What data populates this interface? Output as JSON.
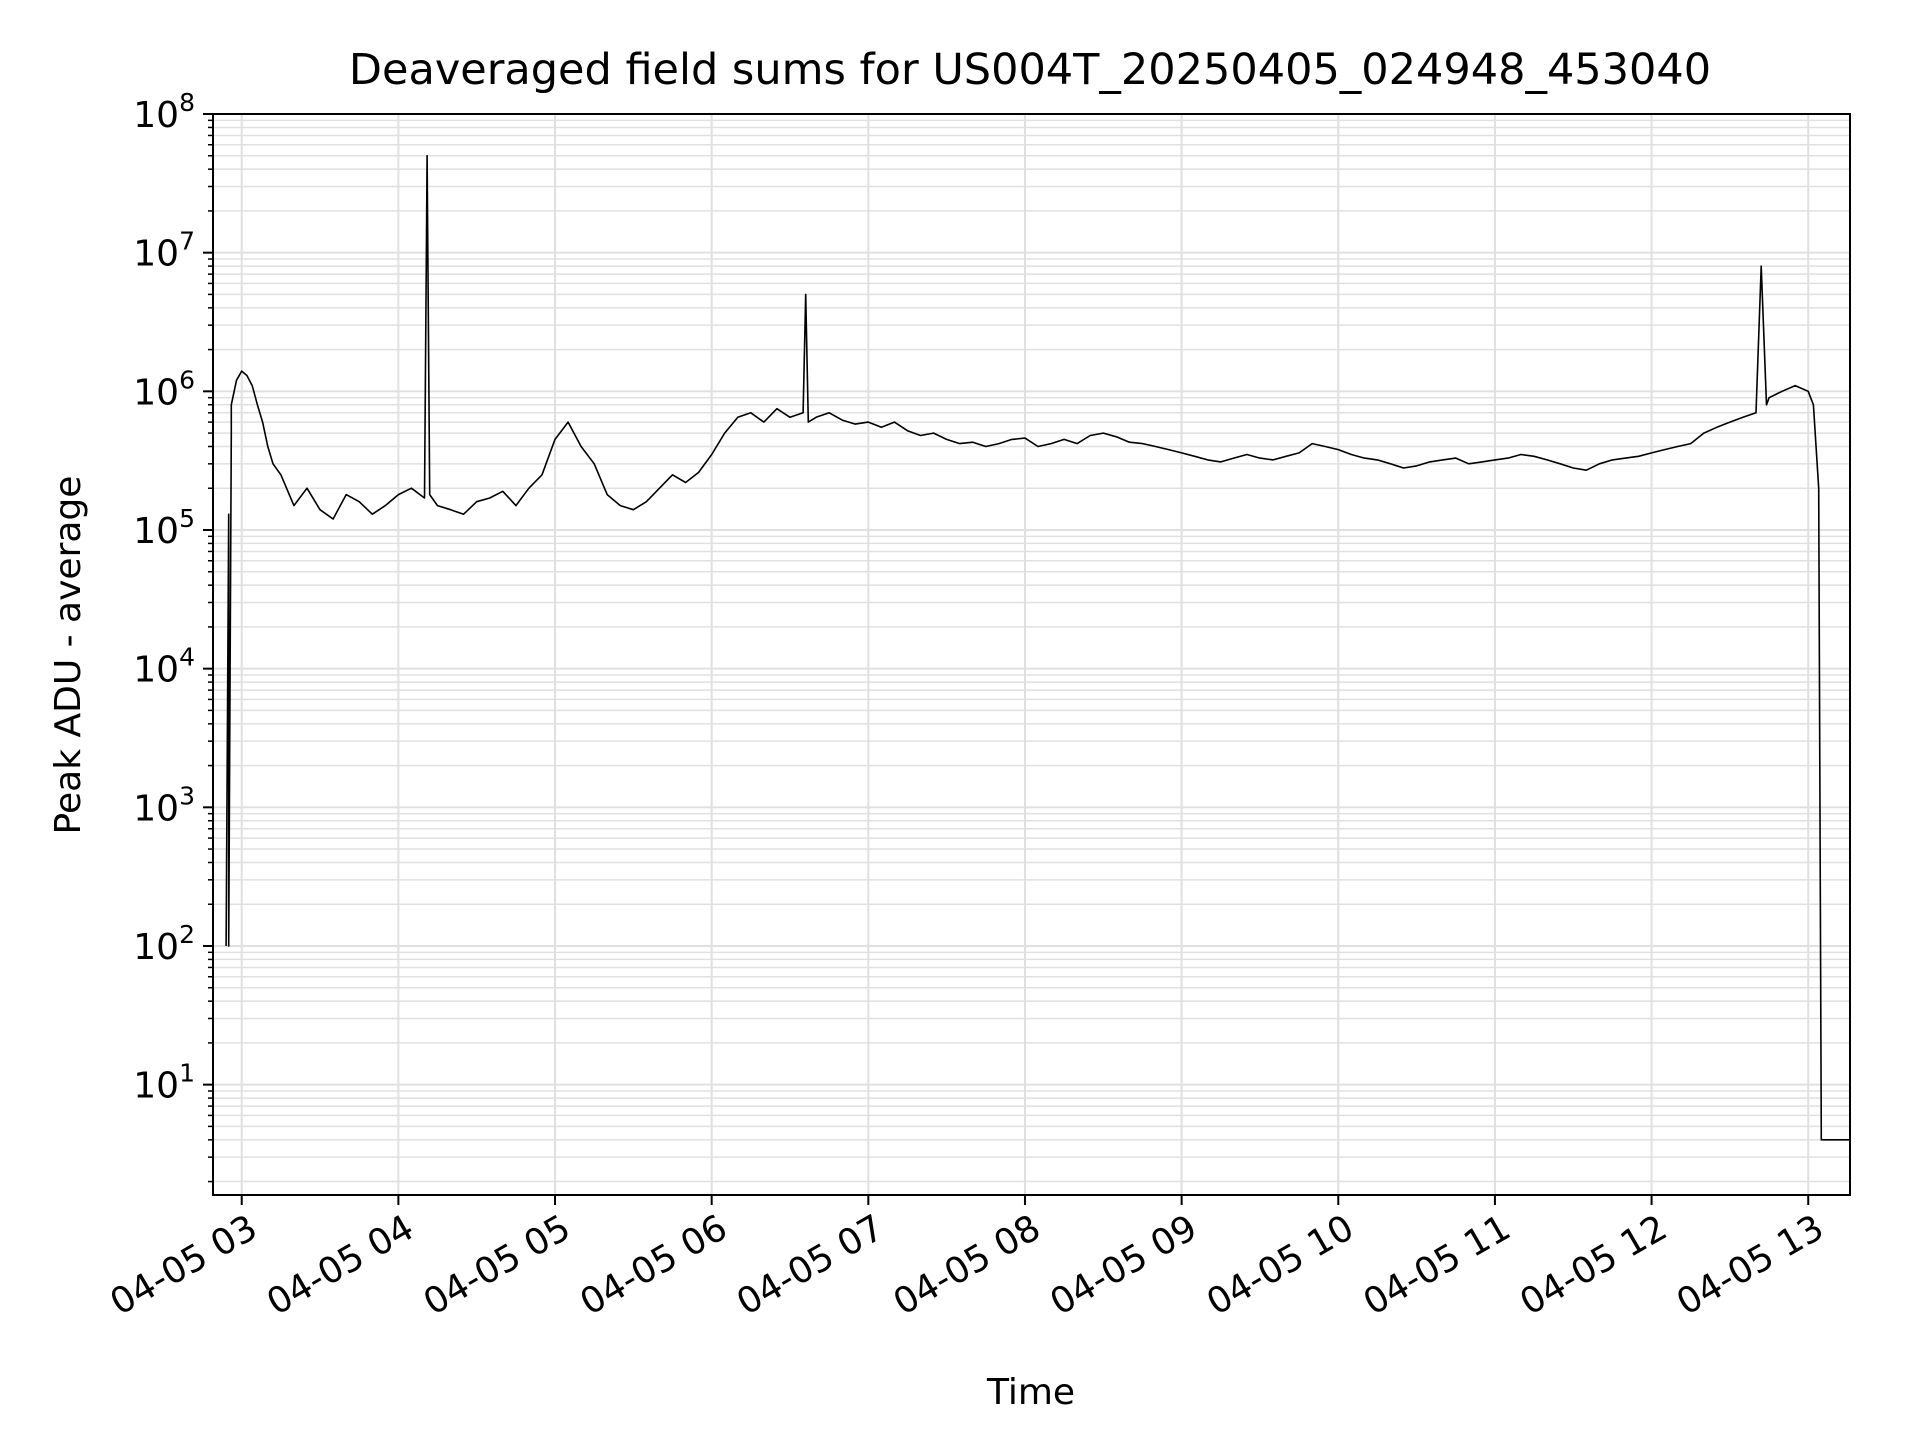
{
  "chart_data": {
    "type": "line",
    "title": "Deaveraged field sums for US004T_20250405_024948_453040",
    "xlabel": "Time",
    "ylabel": "Peak ADU - average",
    "yscale": "log",
    "ylim": [
      1.6,
      100000000
    ],
    "y_ticks": [
      {
        "value": 10,
        "base": "10",
        "exp": "1"
      },
      {
        "value": 100,
        "base": "10",
        "exp": "2"
      },
      {
        "value": 1000,
        "base": "10",
        "exp": "3"
      },
      {
        "value": 10000,
        "base": "10",
        "exp": "4"
      },
      {
        "value": 100000,
        "base": "10",
        "exp": "5"
      },
      {
        "value": 1000000,
        "base": "10",
        "exp": "6"
      },
      {
        "value": 10000000,
        "base": "10",
        "exp": "7"
      },
      {
        "value": 100000000,
        "base": "10",
        "exp": "8"
      }
    ],
    "xlim": [
      "2025-04-05T02:49",
      "2025-04-05T13:16"
    ],
    "x_ticks": [
      {
        "value": "2025-04-05T03:00",
        "label": "04-05 03"
      },
      {
        "value": "2025-04-05T04:00",
        "label": "04-05 04"
      },
      {
        "value": "2025-04-05T05:00",
        "label": "04-05 05"
      },
      {
        "value": "2025-04-05T06:00",
        "label": "04-05 06"
      },
      {
        "value": "2025-04-05T07:00",
        "label": "04-05 07"
      },
      {
        "value": "2025-04-05T08:00",
        "label": "04-05 08"
      },
      {
        "value": "2025-04-05T09:00",
        "label": "04-05 09"
      },
      {
        "value": "2025-04-05T10:00",
        "label": "04-05 10"
      },
      {
        "value": "2025-04-05T11:00",
        "label": "04-05 11"
      },
      {
        "value": "2025-04-05T12:00",
        "label": "04-05 12"
      },
      {
        "value": "2025-04-05T13:00",
        "label": "04-05 13"
      }
    ],
    "grid": true,
    "line_color": "#000000",
    "grid_color": "#e0e0e0",
    "series": [
      {
        "x": [
          "2025-04-05T02:54",
          "2025-04-05T02:55",
          "2025-04-05T02:55",
          "2025-04-05T02:56",
          "2025-04-05T02:56",
          "2025-04-05T02:58",
          "2025-04-05T03:00",
          "2025-04-05T03:02",
          "2025-04-05T03:04",
          "2025-04-05T03:06",
          "2025-04-05T03:08",
          "2025-04-05T03:10",
          "2025-04-05T03:12",
          "2025-04-05T03:15",
          "2025-04-05T03:20",
          "2025-04-05T03:25",
          "2025-04-05T03:30",
          "2025-04-05T03:35",
          "2025-04-05T03:40",
          "2025-04-05T03:45",
          "2025-04-05T03:50",
          "2025-04-05T03:55",
          "2025-04-05T04:00",
          "2025-04-05T04:05",
          "2025-04-05T04:10",
          "2025-04-05T04:11",
          "2025-04-05T04:12",
          "2025-04-05T04:15",
          "2025-04-05T04:20",
          "2025-04-05T04:25",
          "2025-04-05T04:30",
          "2025-04-05T04:35",
          "2025-04-05T04:40",
          "2025-04-05T04:45",
          "2025-04-05T04:50",
          "2025-04-05T04:55",
          "2025-04-05T05:00",
          "2025-04-05T05:05",
          "2025-04-05T05:10",
          "2025-04-05T05:15",
          "2025-04-05T05:20",
          "2025-04-05T05:25",
          "2025-04-05T05:30",
          "2025-04-05T05:35",
          "2025-04-05T05:40",
          "2025-04-05T05:45",
          "2025-04-05T05:50",
          "2025-04-05T05:55",
          "2025-04-05T06:00",
          "2025-04-05T06:05",
          "2025-04-05T06:10",
          "2025-04-05T06:15",
          "2025-04-05T06:20",
          "2025-04-05T06:25",
          "2025-04-05T06:30",
          "2025-04-05T06:35",
          "2025-04-05T06:36",
          "2025-04-05T06:37",
          "2025-04-05T06:40",
          "2025-04-05T06:45",
          "2025-04-05T06:50",
          "2025-04-05T06:55",
          "2025-04-05T07:00",
          "2025-04-05T07:05",
          "2025-04-05T07:10",
          "2025-04-05T07:15",
          "2025-04-05T07:20",
          "2025-04-05T07:25",
          "2025-04-05T07:30",
          "2025-04-05T07:35",
          "2025-04-05T07:40",
          "2025-04-05T07:45",
          "2025-04-05T07:50",
          "2025-04-05T07:55",
          "2025-04-05T08:00",
          "2025-04-05T08:05",
          "2025-04-05T08:10",
          "2025-04-05T08:15",
          "2025-04-05T08:20",
          "2025-04-05T08:25",
          "2025-04-05T08:30",
          "2025-04-05T08:35",
          "2025-04-05T08:40",
          "2025-04-05T08:45",
          "2025-04-05T08:50",
          "2025-04-05T08:55",
          "2025-04-05T09:00",
          "2025-04-05T09:05",
          "2025-04-05T09:10",
          "2025-04-05T09:15",
          "2025-04-05T09:20",
          "2025-04-05T09:25",
          "2025-04-05T09:30",
          "2025-04-05T09:35",
          "2025-04-05T09:40",
          "2025-04-05T09:45",
          "2025-04-05T09:50",
          "2025-04-05T09:55",
          "2025-04-05T10:00",
          "2025-04-05T10:05",
          "2025-04-05T10:10",
          "2025-04-05T10:15",
          "2025-04-05T10:20",
          "2025-04-05T10:25",
          "2025-04-05T10:30",
          "2025-04-05T10:35",
          "2025-04-05T10:40",
          "2025-04-05T10:45",
          "2025-04-05T10:50",
          "2025-04-05T10:55",
          "2025-04-05T11:00",
          "2025-04-05T11:05",
          "2025-04-05T11:10",
          "2025-04-05T11:15",
          "2025-04-05T11:20",
          "2025-04-05T11:25",
          "2025-04-05T11:30",
          "2025-04-05T11:35",
          "2025-04-05T11:40",
          "2025-04-05T11:45",
          "2025-04-05T11:50",
          "2025-04-05T11:55",
          "2025-04-05T12:00",
          "2025-04-05T12:05",
          "2025-04-05T12:10",
          "2025-04-05T12:15",
          "2025-04-05T12:20",
          "2025-04-05T12:25",
          "2025-04-05T12:30",
          "2025-04-05T12:35",
          "2025-04-05T12:40",
          "2025-04-05T12:42",
          "2025-04-05T12:44",
          "2025-04-05T12:45",
          "2025-04-05T12:50",
          "2025-04-05T12:55",
          "2025-04-05T13:00",
          "2025-04-05T13:02",
          "2025-04-05T13:04",
          "2025-04-05T13:05",
          "2025-04-05T13:06",
          "2025-04-05T13:08",
          "2025-04-05T13:10",
          "2025-04-05T13:12",
          "2025-04-05T13:14",
          "2025-04-05T13:16"
        ],
        "y": [
          100,
          130000,
          100,
          500000,
          800000,
          1200000,
          1400000,
          1300000,
          1100000,
          800000,
          600000,
          400000,
          300000,
          250000,
          150000,
          200000,
          140000,
          120000,
          180000,
          160000,
          130000,
          150000,
          180000,
          200000,
          170000,
          50000000,
          180000,
          150000,
          140000,
          130000,
          160000,
          170000,
          190000,
          150000,
          200000,
          250000,
          450000,
          600000,
          400000,
          300000,
          180000,
          150000,
          140000,
          160000,
          200000,
          250000,
          220000,
          260000,
          350000,
          500000,
          650000,
          700000,
          600000,
          750000,
          650000,
          700000,
          5000000,
          600000,
          650000,
          700000,
          620000,
          580000,
          600000,
          550000,
          600000,
          520000,
          480000,
          500000,
          450000,
          420000,
          430000,
          400000,
          420000,
          450000,
          460000,
          400000,
          420000,
          450000,
          420000,
          480000,
          500000,
          470000,
          430000,
          420000,
          400000,
          380000,
          360000,
          340000,
          320000,
          310000,
          330000,
          350000,
          330000,
          320000,
          340000,
          360000,
          420000,
          400000,
          380000,
          350000,
          330000,
          320000,
          300000,
          280000,
          290000,
          310000,
          320000,
          330000,
          300000,
          310000,
          320000,
          330000,
          350000,
          340000,
          320000,
          300000,
          280000,
          270000,
          300000,
          320000,
          330000,
          340000,
          360000,
          380000,
          400000,
          420000,
          500000,
          550000,
          600000,
          650000,
          700000,
          8000000,
          800000,
          900000,
          1000000,
          1100000,
          1000000,
          800000,
          200000,
          4,
          4,
          4,
          4,
          4,
          4,
          4
        ]
      }
    ]
  }
}
